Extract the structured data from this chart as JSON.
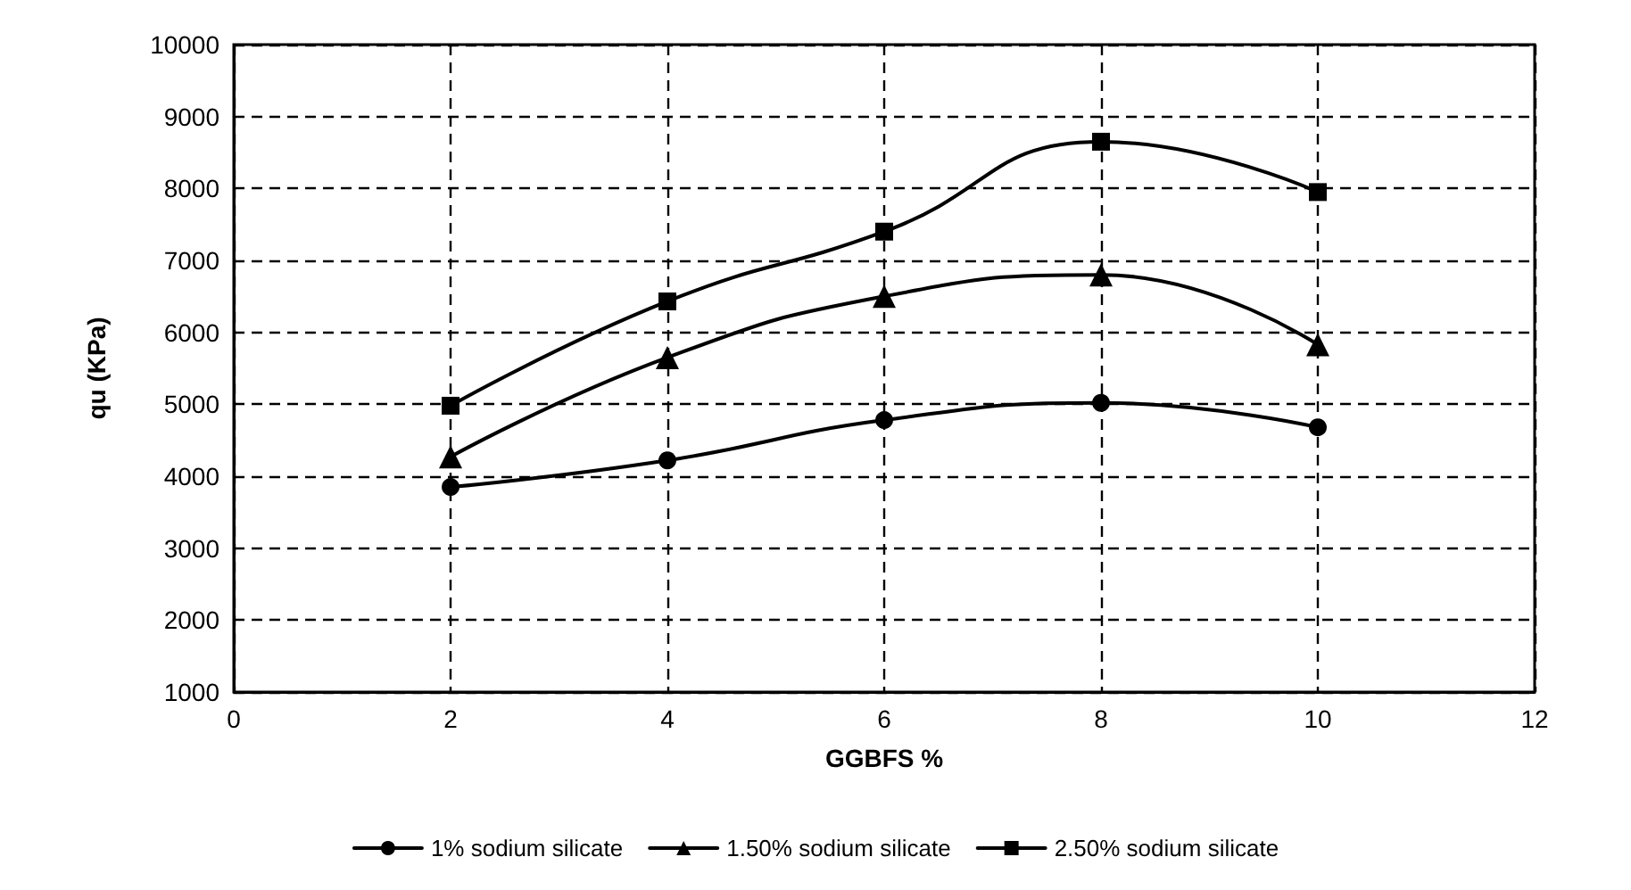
{
  "chart_data": {
    "type": "line",
    "xlabel": "GGBFS %",
    "ylabel": "qu (KPa)",
    "x": [
      2,
      4,
      6,
      8,
      10
    ],
    "series": [
      {
        "name": "1% sodium silicate",
        "color": "#000000",
        "marker": "circle",
        "values": [
          3850,
          4220,
          4780,
          5020,
          4680
        ]
      },
      {
        "name": "1.50% sodium silicate",
        "color": "#000000",
        "marker": "triangle",
        "values": [
          4270,
          5650,
          6500,
          6800,
          5830
        ]
      },
      {
        "name": "2.50% sodium silicate",
        "color": "#000000",
        "marker": "square",
        "values": [
          4980,
          6430,
          7400,
          8650,
          7950
        ]
      }
    ],
    "xlim": [
      0,
      12
    ],
    "xticks": [
      0,
      2,
      4,
      6,
      8,
      10,
      12
    ],
    "ylim": [
      1000,
      10000
    ],
    "yticks": [
      1000,
      2000,
      3000,
      4000,
      5000,
      6000,
      7000,
      8000,
      9000,
      10000
    ],
    "grid": true,
    "legend": "bottom",
    "line_style": "solid"
  }
}
